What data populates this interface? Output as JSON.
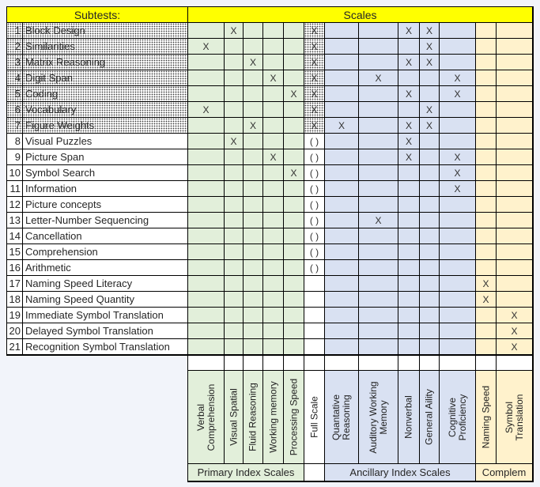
{
  "title_row": {
    "subtests_label": "Subtests:",
    "scales_label": "Scales"
  },
  "colors": {
    "header_yellow": "#FFFF00",
    "primary_green": "#E2EFDA",
    "ancillary_blue": "#D9E1F2",
    "complementary_tan": "#FFF2CC",
    "full_scale_white": "#FFFFFF",
    "border_black": "#000000",
    "page_background": "#F2F4FA"
  },
  "scale_columns": [
    {
      "id": "vc",
      "group": "primary",
      "label_lines": [
        "Verbal",
        "Comprehension"
      ]
    },
    {
      "id": "vs",
      "group": "primary",
      "label_lines": [
        "Visual Spatial"
      ]
    },
    {
      "id": "fr",
      "group": "primary",
      "label_lines": [
        "Fluid Reasoning"
      ]
    },
    {
      "id": "wm",
      "group": "primary",
      "label_lines": [
        "Working memory"
      ]
    },
    {
      "id": "ps",
      "group": "primary",
      "label_lines": [
        "Processing Speed"
      ]
    },
    {
      "id": "fs",
      "group": "full_scale",
      "label_lines": [
        "Full Scale"
      ]
    },
    {
      "id": "qr",
      "group": "ancillary",
      "label_lines": [
        "Quantative",
        "Reasoning"
      ]
    },
    {
      "id": "awm",
      "group": "ancillary",
      "label_lines": [
        "Auditory Working",
        "Memory"
      ]
    },
    {
      "id": "nv",
      "group": "ancillary",
      "label_lines": [
        "Nonverbal"
      ]
    },
    {
      "id": "ga",
      "group": "ancillary",
      "label_lines": [
        "General Aility"
      ]
    },
    {
      "id": "cp",
      "group": "ancillary",
      "label_lines": [
        "Cognitive",
        "Proficiency"
      ]
    },
    {
      "id": "ns",
      "group": "complementary",
      "label_lines": [
        "Naming Speed"
      ]
    },
    {
      "id": "st",
      "group": "complementary",
      "label_lines": [
        "Symbol",
        "Translation"
      ]
    }
  ],
  "rows": [
    {
      "num": "1",
      "name": "Block Design",
      "hatched": true,
      "marks": {
        "vs": "X",
        "fs": "X",
        "nv": "X",
        "ga": "X"
      }
    },
    {
      "num": "2",
      "name": "Similarities",
      "hatched": true,
      "marks": {
        "vc": "X",
        "fs": "X",
        "ga": "X"
      }
    },
    {
      "num": "3",
      "name": "Matrix Reasoning",
      "hatched": true,
      "marks": {
        "fr": "X",
        "fs": "X",
        "nv": "X",
        "ga": "X"
      }
    },
    {
      "num": "4",
      "name": "Digit Span",
      "hatched": true,
      "marks": {
        "wm": "X",
        "fs": "X",
        "awm": "X",
        "cp": "X"
      }
    },
    {
      "num": "5",
      "name": "Coding",
      "hatched": true,
      "marks": {
        "ps": "X",
        "fs": "X",
        "nv": "X",
        "cp": "X"
      }
    },
    {
      "num": "6",
      "name": "Vocabulary",
      "hatched": true,
      "marks": {
        "vc": "X",
        "fs": "X",
        "ga": "X"
      }
    },
    {
      "num": "7",
      "name": "Figure Weights",
      "hatched": true,
      "marks": {
        "fr": "X",
        "fs": "X",
        "qr": "X",
        "nv": "X",
        "ga": "X"
      }
    },
    {
      "num": "8",
      "name": "Visual Puzzles",
      "hatched": false,
      "marks": {
        "vs": "X",
        "fs": "( )",
        "nv": "X"
      }
    },
    {
      "num": "9",
      "name": "Picture Span",
      "hatched": false,
      "marks": {
        "wm": "X",
        "fs": "( )",
        "nv": "X",
        "cp": "X"
      }
    },
    {
      "num": "10",
      "name": "Symbol Search",
      "hatched": false,
      "marks": {
        "ps": "X",
        "fs": "( )",
        "cp": "X"
      }
    },
    {
      "num": "11",
      "name": "Information",
      "hatched": false,
      "marks": {
        "fs": "( )",
        "cp": "X"
      }
    },
    {
      "num": "12",
      "name": "Picture concepts",
      "hatched": false,
      "marks": {
        "fs": "( )"
      }
    },
    {
      "num": "13",
      "name": "Letter-Number Sequencing",
      "hatched": false,
      "marks": {
        "fs": "( )",
        "awm": "X"
      }
    },
    {
      "num": "14",
      "name": "Cancellation",
      "hatched": false,
      "marks": {
        "fs": "( )"
      }
    },
    {
      "num": "15",
      "name": "Comprehension",
      "hatched": false,
      "marks": {
        "fs": "( )"
      }
    },
    {
      "num": "16",
      "name": "Arithmetic",
      "hatched": false,
      "marks": {
        "fs": "( )"
      }
    },
    {
      "num": "17",
      "name": "Naming Speed Literacy",
      "hatched": false,
      "marks": {
        "ns": "X"
      }
    },
    {
      "num": "18",
      "name": "Naming Speed Quantity",
      "hatched": false,
      "marks": {
        "ns": "X"
      }
    },
    {
      "num": "19",
      "name": "Immediate Symbol Translation",
      "hatched": false,
      "marks": {
        "st": "X"
      }
    },
    {
      "num": "20",
      "name": "Delayed Symbol Translation",
      "hatched": false,
      "marks": {
        "st": "X"
      }
    },
    {
      "num": "21",
      "name": "Recognition Symbol Translation",
      "hatched": false,
      "marks": {
        "st": "X"
      }
    }
  ],
  "footer_groups": [
    {
      "label": "Primary Index Scales",
      "group": "primary",
      "from": "vc",
      "to": "ps"
    },
    {
      "label": "",
      "group": "full_scale",
      "from": "fs",
      "to": "fs"
    },
    {
      "label": "Ancillary Index Scales",
      "group": "ancillary",
      "from": "qr",
      "to": "cp"
    },
    {
      "label": "Complem",
      "group": "complementary",
      "from": "ns",
      "to": "st"
    }
  ]
}
